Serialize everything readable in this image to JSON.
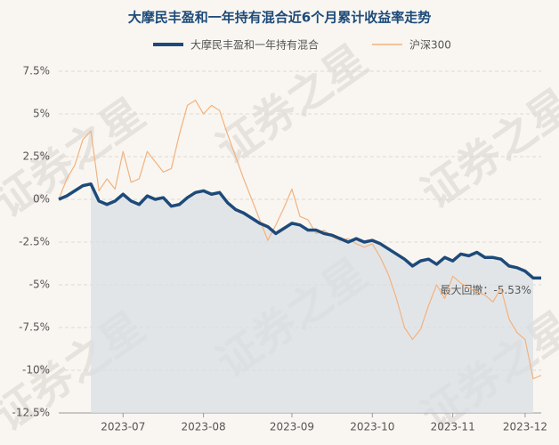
{
  "chart_data": {
    "type": "line",
    "title": "大摩民丰盈和一年持有混合近6个月累计收益率走势",
    "watermark": "证券之星",
    "annotation": "最大回撤：-5.53%",
    "categories": [
      null,
      null,
      null,
      null,
      null,
      null,
      null,
      null,
      "2023-07",
      null,
      null,
      null,
      null,
      null,
      null,
      null,
      null,
      null,
      "2023-08",
      null,
      null,
      null,
      null,
      null,
      null,
      null,
      null,
      null,
      null,
      "2023-09",
      null,
      null,
      null,
      null,
      null,
      null,
      null,
      null,
      null,
      "2023-10",
      null,
      null,
      null,
      null,
      null,
      null,
      null,
      null,
      null,
      "2023-11",
      null,
      null,
      null,
      null,
      null,
      null,
      null,
      null,
      "2023-12",
      null,
      null
    ],
    "series": [
      {
        "name": "大摩民丰盈和一年持有混合",
        "color": "#1d4a7a",
        "values": [
          0,
          0.2,
          0.5,
          0.8,
          0.9,
          -0.1,
          -0.3,
          -0.1,
          0.3,
          -0.1,
          -0.3,
          0.2,
          0,
          0.1,
          -0.4,
          -0.3,
          0.1,
          0.4,
          0.5,
          0.3,
          0.4,
          -0.2,
          -0.6,
          -0.8,
          -1.1,
          -1.4,
          -1.6,
          -2.0,
          -1.7,
          -1.4,
          -1.5,
          -1.8,
          -1.8,
          -2.0,
          -2.1,
          -2.3,
          -2.5,
          -2.3,
          -2.5,
          -2.4,
          -2.6,
          -2.9,
          -3.2,
          -3.5,
          -3.9,
          -3.6,
          -3.5,
          -3.8,
          -3.4,
          -3.6,
          -3.2,
          -3.3,
          -3.1,
          -3.4,
          -3.4,
          -3.5,
          -3.9,
          -4.0,
          -4.2,
          -4.6,
          -4.6
        ]
      },
      {
        "name": "沪深300",
        "color": "#f2b27e",
        "values": [
          0,
          1.2,
          2.0,
          3.5,
          4.0,
          0.5,
          1.2,
          0.6,
          2.8,
          1.0,
          1.2,
          2.8,
          2.2,
          1.6,
          1.8,
          3.8,
          5.5,
          5.8,
          5.0,
          5.5,
          5.2,
          3.8,
          2.5,
          1.2,
          0.0,
          -1.2,
          -2.4,
          -1.5,
          -0.5,
          0.6,
          -1.0,
          -1.2,
          -2.0,
          -1.8,
          -2.2,
          -2.4,
          -2.3,
          -2.6,
          -2.8,
          -2.6,
          -3.4,
          -4.4,
          -5.8,
          -7.5,
          -8.2,
          -7.6,
          -6.2,
          -5.0,
          -5.8,
          -4.5,
          -4.9,
          -5.2,
          -5.4,
          -5.6,
          -6.0,
          -5.2,
          -7.0,
          -7.8,
          -8.2,
          -10.5,
          -10.3
        ]
      }
    ],
    "ylim": [
      -12.5,
      7.5
    ],
    "yticks": [
      {
        "value": 7.5,
        "label": "7.5%"
      },
      {
        "value": 5,
        "label": "5%"
      },
      {
        "value": 2.5,
        "label": "2.5%"
      },
      {
        "value": 0,
        "label": "0%"
      },
      {
        "value": -2.5,
        "label": "-2.5%"
      },
      {
        "value": -5,
        "label": "-5%"
      },
      {
        "value": -7.5,
        "label": "-7.5%"
      },
      {
        "value": -10,
        "label": "-10%"
      },
      {
        "value": -12.5,
        "label": "-12.5%"
      }
    ],
    "grid": true
  }
}
